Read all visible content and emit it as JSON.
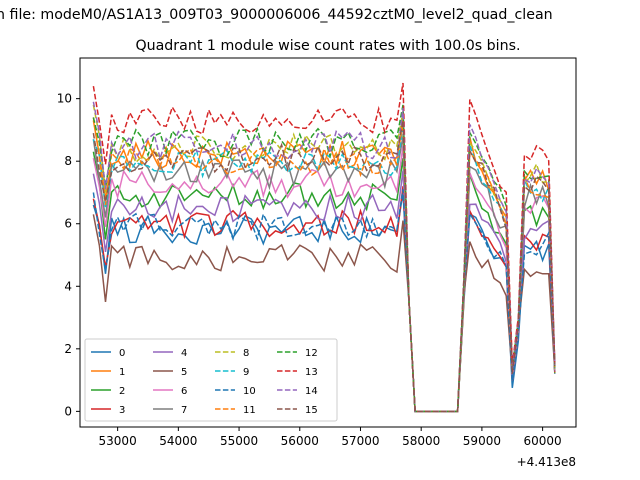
{
  "chart_data": {
    "type": "line",
    "suptitle": "n file: modeM0/AS1A13_009T03_9000006006_44592cztM0_level2_quad_clean",
    "title": "Quadrant 1 module wise count rates with 100.0s bins.",
    "xlabel": "",
    "ylabel": "",
    "x_offset_label": "+4.413e8",
    "xlim": [
      52380,
      60550
    ],
    "ylim": [
      -0.5,
      11.3
    ],
    "xticks": [
      53000,
      54000,
      55000,
      56000,
      57000,
      58000,
      59000,
      60000
    ],
    "yticks": [
      0,
      2,
      4,
      6,
      8,
      10
    ],
    "grid": false,
    "legend_position": "lower-left",
    "legend_columns": 4,
    "x_start": 52600,
    "x_end": 60200,
    "x_step": 100,
    "series": [
      {
        "name": "0",
        "color": "#1f77b4",
        "dash": "solid",
        "level": 5.8,
        "drop": 0.75
      },
      {
        "name": "1",
        "color": "#ff7f0e",
        "dash": "solid",
        "level": 8.2,
        "drop": 1.2
      },
      {
        "name": "2",
        "color": "#2ca02c",
        "dash": "solid",
        "level": 6.9,
        "drop": 1.1
      },
      {
        "name": "3",
        "color": "#d62728",
        "dash": "solid",
        "level": 6.0,
        "drop": 1.0
      },
      {
        "name": "4",
        "color": "#9467bd",
        "dash": "solid",
        "level": 6.5,
        "drop": 1.0
      },
      {
        "name": "5",
        "color": "#8c564b",
        "dash": "solid",
        "level": 4.9,
        "drop": 1.2
      },
      {
        "name": "6",
        "color": "#e377c2",
        "dash": "solid",
        "level": 7.3,
        "drop": 1.1
      },
      {
        "name": "7",
        "color": "#7f7f7f",
        "dash": "solid",
        "level": 7.6,
        "drop": 1.2
      },
      {
        "name": "8",
        "color": "#bcbd22",
        "dash": "dashed",
        "level": 8.4,
        "drop": 1.3
      },
      {
        "name": "9",
        "color": "#17becf",
        "dash": "dashed",
        "level": 7.9,
        "drop": 1.2
      },
      {
        "name": "10",
        "color": "#1f77b4",
        "dash": "dashed",
        "level": 5.9,
        "drop": 1.0
      },
      {
        "name": "11",
        "color": "#ff7f0e",
        "dash": "dashed",
        "level": 8.0,
        "drop": 1.3
      },
      {
        "name": "12",
        "color": "#2ca02c",
        "dash": "dashed",
        "level": 8.6,
        "drop": 1.4
      },
      {
        "name": "13",
        "color": "#d62728",
        "dash": "dashed",
        "level": 9.3,
        "drop": 1.5
      },
      {
        "name": "14",
        "color": "#9467bd",
        "dash": "dashed",
        "level": 8.5,
        "drop": 1.3
      },
      {
        "name": "15",
        "color": "#8c564b",
        "dash": "dashed",
        "level": 8.1,
        "drop": 1.2
      }
    ],
    "gap_interval": [
      57900,
      58600
    ],
    "gap_value": 0.0
  }
}
